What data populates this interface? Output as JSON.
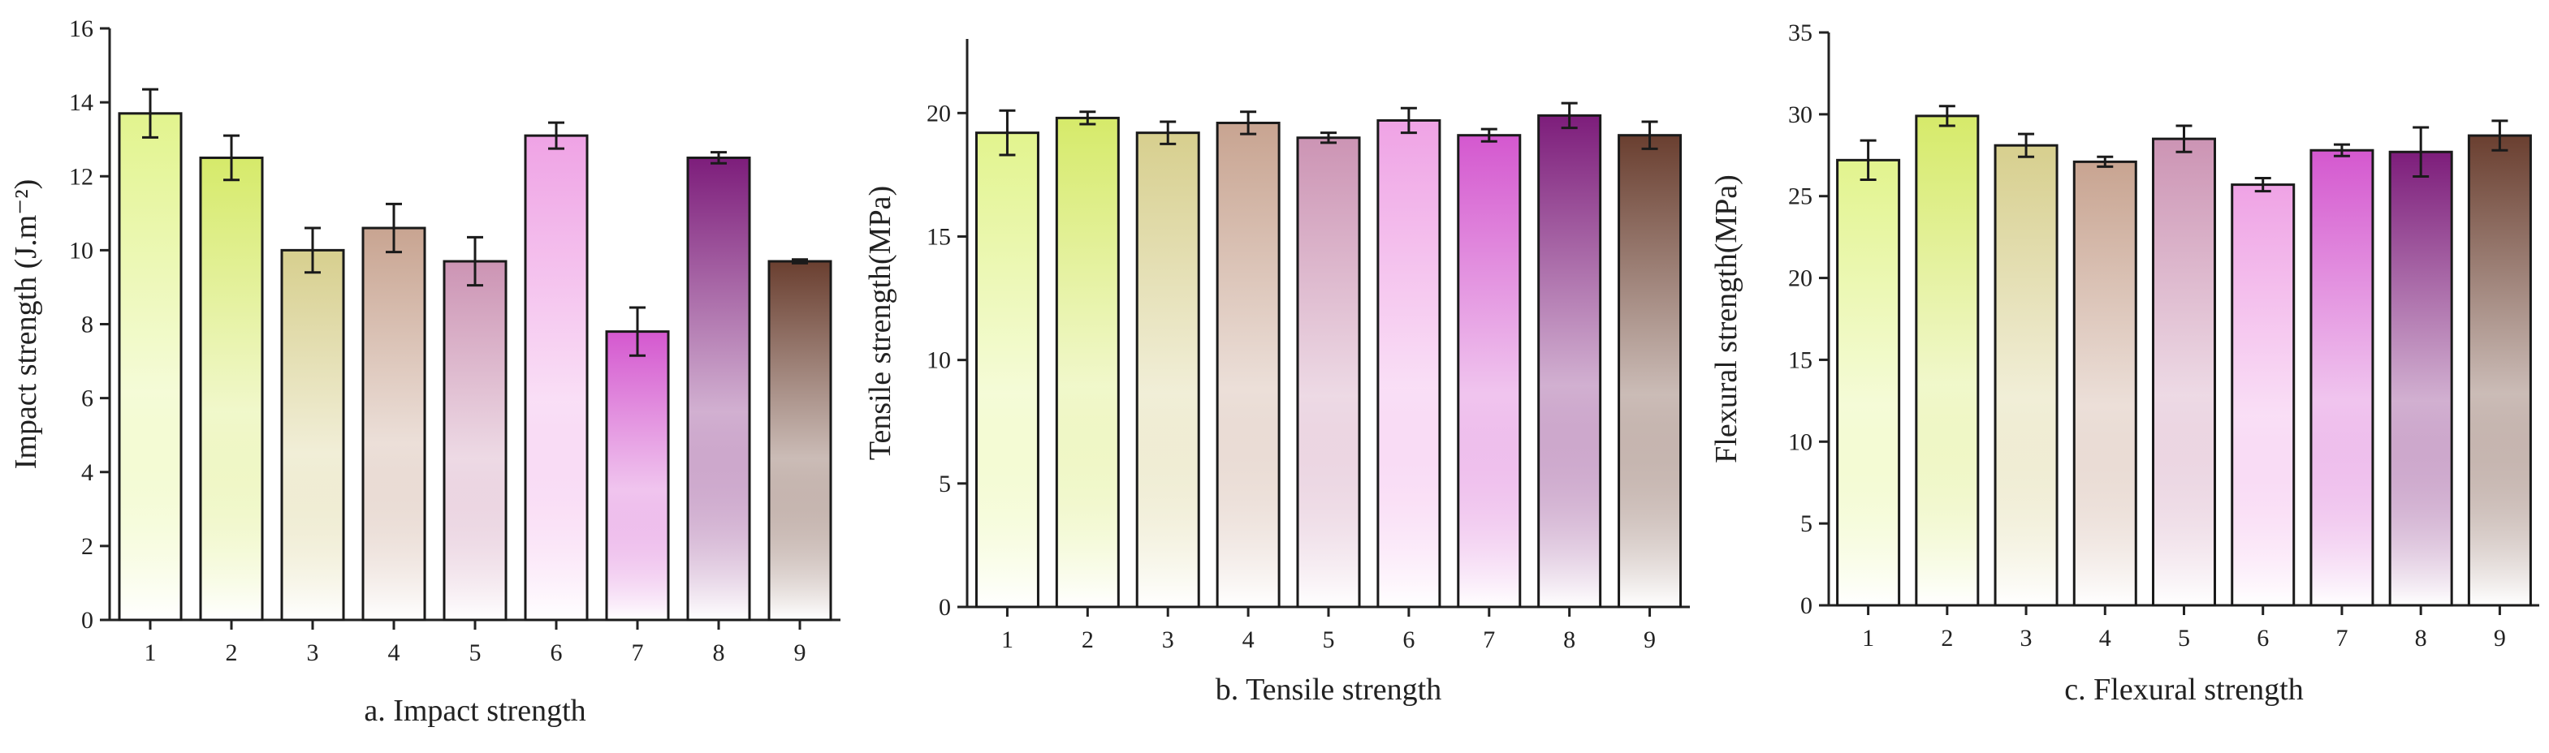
{
  "chart_data": [
    {
      "type": "bar",
      "title": "",
      "caption": "a. Impact strength",
      "xlabel": "",
      "ylabel": "Impact strength (J.m⁻²)",
      "categories": [
        "1",
        "2",
        "3",
        "4",
        "5",
        "6",
        "7",
        "8",
        "9"
      ],
      "values": [
        13.7,
        12.5,
        10.0,
        10.6,
        9.7,
        13.1,
        7.8,
        12.5,
        9.7
      ],
      "errors": [
        0.65,
        0.6,
        0.6,
        0.65,
        0.65,
        0.35,
        0.65,
        0.15,
        0.05
      ],
      "ylim": [
        0,
        16
      ],
      "yticks": [
        0,
        2,
        4,
        6,
        8,
        10,
        12,
        14,
        16
      ],
      "grid": false
    },
    {
      "type": "bar",
      "title": "",
      "caption": "b. Tensile strength",
      "xlabel": "",
      "ylabel": "Tensile strength(MPa)",
      "categories": [
        "1",
        "2",
        "3",
        "4",
        "5",
        "6",
        "7",
        "8",
        "9"
      ],
      "values": [
        19.2,
        19.8,
        19.2,
        19.6,
        19.0,
        19.7,
        19.1,
        19.9,
        19.1
      ],
      "errors": [
        0.9,
        0.25,
        0.45,
        0.45,
        0.2,
        0.5,
        0.25,
        0.5,
        0.55
      ],
      "ylim": [
        0,
        23
      ],
      "yticks": [
        0,
        5,
        10,
        15,
        20
      ],
      "grid": false
    },
    {
      "type": "bar",
      "title": "",
      "caption": "c. Flexural strength",
      "xlabel": "",
      "ylabel": "Flexural strength(MPa)",
      "categories": [
        "1",
        "2",
        "3",
        "4",
        "5",
        "6",
        "7",
        "8",
        "9"
      ],
      "values": [
        27.2,
        29.9,
        28.1,
        27.1,
        28.5,
        25.7,
        27.8,
        27.7,
        28.7
      ],
      "errors": [
        1.2,
        0.6,
        0.7,
        0.3,
        0.8,
        0.4,
        0.35,
        1.5,
        0.9
      ],
      "ylim": [
        0,
        35
      ],
      "yticks": [
        0,
        5,
        10,
        15,
        20,
        25,
        30,
        35
      ],
      "grid": false
    }
  ],
  "bar_colors": [
    "#e2f48e",
    "#d6ea6a",
    "#d7cf8e",
    "#c8a491",
    "#cc94b4",
    "#efa3e5",
    "#d458cf",
    "#7d1d7b",
    "#6a3f30"
  ]
}
